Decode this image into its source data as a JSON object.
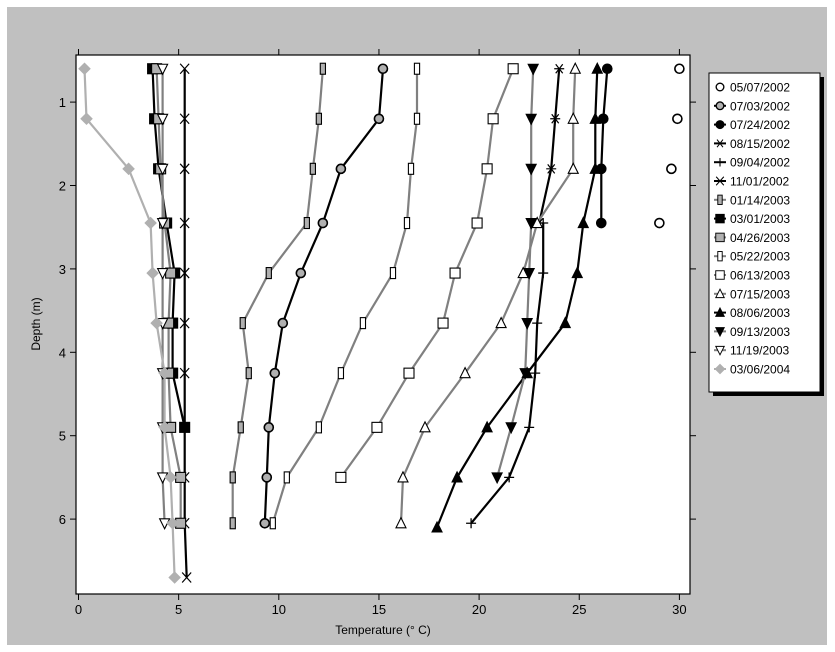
{
  "chart_data": {
    "type": "line",
    "xlabel": "Temperature (° C)",
    "ylabel": "Depth (m)",
    "xlim": [
      0,
      30.6
    ],
    "ylim": [
      6.85,
      0.4
    ],
    "y_inverted": true,
    "xticks": [
      0,
      5,
      10,
      15,
      20,
      25,
      30
    ],
    "yticks": [
      1,
      2,
      3,
      4,
      5,
      6
    ],
    "grid": false,
    "legend_position": "right",
    "series": [
      {
        "name": "05/07/2002",
        "color": "#000000",
        "marker": "circle-open",
        "line": false,
        "points": [
          [
            30.0,
            0.6
          ],
          [
            29.9,
            1.2
          ],
          [
            29.6,
            1.8
          ],
          [
            29.0,
            2.45
          ]
        ]
      },
      {
        "name": "07/03/2002",
        "color": "#000000",
        "marker": "circle-gray",
        "line": true,
        "points": [
          [
            15.2,
            0.6
          ],
          [
            15.0,
            1.2
          ],
          [
            13.1,
            1.8
          ],
          [
            12.2,
            2.45
          ],
          [
            11.1,
            3.05
          ],
          [
            10.2,
            3.65
          ],
          [
            9.8,
            4.25
          ],
          [
            9.5,
            4.9
          ],
          [
            9.4,
            5.5
          ],
          [
            9.3,
            6.05
          ]
        ]
      },
      {
        "name": "07/24/2002",
        "color": "#000000",
        "marker": "circle-filled",
        "line": true,
        "points": [
          [
            26.4,
            0.6
          ],
          [
            26.2,
            1.2
          ],
          [
            26.1,
            1.8
          ],
          [
            26.1,
            2.45
          ]
        ]
      },
      {
        "name": "08/15/2002",
        "color": "#000000",
        "marker": "asterisk",
        "line": true,
        "points": [
          [
            24.0,
            0.6
          ],
          [
            23.8,
            1.2
          ],
          [
            23.6,
            1.8
          ],
          [
            23.0,
            2.45
          ]
        ]
      },
      {
        "name": "09/04/2002",
        "color": "#000000",
        "marker": "plus",
        "line": true,
        "points": [
          [
            23.2,
            2.45
          ],
          [
            23.2,
            3.05
          ],
          [
            22.9,
            3.65
          ],
          [
            22.8,
            4.25
          ],
          [
            22.5,
            4.9
          ],
          [
            21.5,
            5.5
          ],
          [
            19.6,
            6.05
          ]
        ]
      },
      {
        "name": "11/01/2002",
        "color": "#000000",
        "marker": "x",
        "line": true,
        "points": [
          [
            5.3,
            0.6
          ],
          [
            5.3,
            1.2
          ],
          [
            5.3,
            1.8
          ],
          [
            5.3,
            2.45
          ],
          [
            5.3,
            3.05
          ],
          [
            5.3,
            3.65
          ],
          [
            5.3,
            4.25
          ],
          [
            5.3,
            4.9
          ],
          [
            5.3,
            5.5
          ],
          [
            5.3,
            6.05
          ],
          [
            5.4,
            6.7
          ]
        ]
      },
      {
        "name": "01/14/2003",
        "color": "#808080",
        "marker": "rect-gray",
        "line": true,
        "points": [
          [
            12.2,
            0.6
          ],
          [
            12.0,
            1.2
          ],
          [
            11.7,
            1.8
          ],
          [
            11.4,
            2.45
          ],
          [
            9.5,
            3.05
          ],
          [
            8.2,
            3.65
          ],
          [
            8.5,
            4.25
          ],
          [
            8.1,
            4.9
          ],
          [
            7.7,
            5.5
          ],
          [
            7.7,
            6.05
          ]
        ]
      },
      {
        "name": "03/01/2003",
        "color": "#000000",
        "marker": "square-filled",
        "line": true,
        "points": [
          [
            3.7,
            0.6
          ],
          [
            3.8,
            1.2
          ],
          [
            4.0,
            1.8
          ],
          [
            4.4,
            2.45
          ],
          [
            4.8,
            3.05
          ],
          [
            4.7,
            3.65
          ],
          [
            4.7,
            4.25
          ],
          [
            5.3,
            4.9
          ]
        ]
      },
      {
        "name": "04/26/2003",
        "color": "#808080",
        "marker": "square-gray",
        "line": true,
        "points": [
          [
            3.9,
            0.6
          ],
          [
            4.0,
            1.2
          ],
          [
            4.1,
            1.8
          ],
          [
            4.3,
            2.45
          ],
          [
            4.6,
            3.05
          ],
          [
            4.5,
            3.65
          ],
          [
            4.5,
            4.25
          ],
          [
            4.6,
            4.9
          ],
          [
            5.1,
            5.5
          ],
          [
            5.1,
            6.05
          ]
        ]
      },
      {
        "name": "05/22/2003",
        "color": "#808080",
        "marker": "rect-open",
        "line": true,
        "points": [
          [
            16.9,
            0.6
          ],
          [
            16.9,
            1.2
          ],
          [
            16.6,
            1.8
          ],
          [
            16.4,
            2.45
          ],
          [
            15.7,
            3.05
          ],
          [
            14.2,
            3.65
          ],
          [
            13.1,
            4.25
          ],
          [
            12.0,
            4.9
          ],
          [
            10.4,
            5.5
          ],
          [
            9.7,
            6.05
          ]
        ]
      },
      {
        "name": "06/13/2003",
        "color": "#808080",
        "marker": "square-open",
        "line": true,
        "points": [
          [
            21.7,
            0.6
          ],
          [
            20.7,
            1.2
          ],
          [
            20.4,
            1.8
          ],
          [
            19.9,
            2.45
          ],
          [
            18.8,
            3.05
          ],
          [
            18.2,
            3.65
          ],
          [
            16.5,
            4.25
          ],
          [
            14.9,
            4.9
          ],
          [
            13.1,
            5.5
          ]
        ]
      },
      {
        "name": "07/15/2003",
        "color": "#808080",
        "marker": "triangle-open",
        "line": true,
        "points": [
          [
            24.8,
            0.6
          ],
          [
            24.7,
            1.2
          ],
          [
            24.7,
            1.8
          ],
          [
            22.9,
            2.45
          ],
          [
            22.2,
            3.05
          ],
          [
            21.1,
            3.65
          ],
          [
            19.3,
            4.25
          ],
          [
            17.3,
            4.9
          ],
          [
            16.2,
            5.5
          ],
          [
            16.1,
            6.05
          ]
        ]
      },
      {
        "name": "08/06/2003",
        "color": "#000000",
        "marker": "triangle-filled",
        "line": true,
        "points": [
          [
            25.9,
            0.6
          ],
          [
            25.8,
            1.2
          ],
          [
            25.8,
            1.8
          ],
          [
            25.2,
            2.45
          ],
          [
            24.9,
            3.05
          ],
          [
            24.3,
            3.65
          ],
          [
            22.4,
            4.25
          ],
          [
            20.4,
            4.9
          ],
          [
            18.9,
            5.5
          ],
          [
            17.9,
            6.1
          ]
        ]
      },
      {
        "name": "09/13/2003",
        "color": "#808080",
        "marker": "triangle-down-filled",
        "line": true,
        "points": [
          [
            22.7,
            0.6
          ],
          [
            22.6,
            1.2
          ],
          [
            22.6,
            1.8
          ],
          [
            22.6,
            2.45
          ],
          [
            22.5,
            3.05
          ],
          [
            22.4,
            3.65
          ],
          [
            22.3,
            4.25
          ],
          [
            21.6,
            4.9
          ],
          [
            20.9,
            5.5
          ]
        ]
      },
      {
        "name": "11/19/2003",
        "color": "#808080",
        "marker": "triangle-down-open",
        "line": true,
        "points": [
          [
            4.2,
            0.6
          ],
          [
            4.2,
            1.2
          ],
          [
            4.2,
            1.8
          ],
          [
            4.2,
            2.45
          ],
          [
            4.2,
            3.05
          ],
          [
            4.2,
            3.65
          ],
          [
            4.2,
            4.25
          ],
          [
            4.2,
            4.9
          ],
          [
            4.2,
            5.5
          ],
          [
            4.3,
            6.05
          ]
        ]
      },
      {
        "name": "03/06/2004",
        "color": "#b0b0b0",
        "marker": "diamond-gray",
        "line": true,
        "points": [
          [
            0.3,
            0.6
          ],
          [
            0.4,
            1.2
          ],
          [
            2.5,
            1.8
          ],
          [
            3.6,
            2.45
          ],
          [
            3.7,
            3.05
          ],
          [
            3.9,
            3.65
          ],
          [
            4.3,
            4.25
          ],
          [
            4.3,
            4.9
          ],
          [
            4.6,
            5.5
          ],
          [
            4.7,
            6.05
          ],
          [
            4.8,
            6.7
          ]
        ]
      }
    ]
  }
}
